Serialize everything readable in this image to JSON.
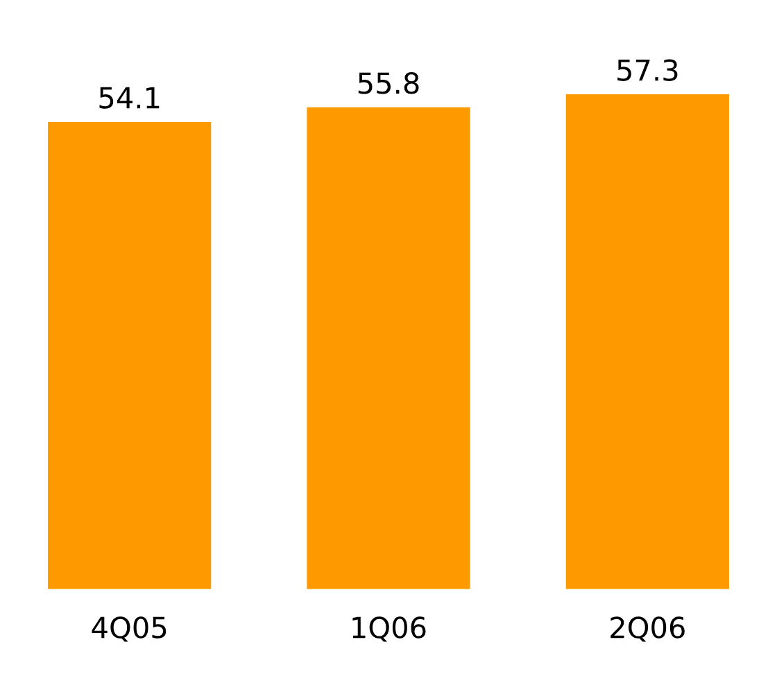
{
  "chart_data": {
    "type": "bar",
    "categories": [
      "4Q05",
      "1Q06",
      "2Q06"
    ],
    "values": [
      54.1,
      55.8,
      57.3
    ],
    "color": "#ff9900",
    "data_labels": true,
    "grid": false,
    "legend": false
  }
}
